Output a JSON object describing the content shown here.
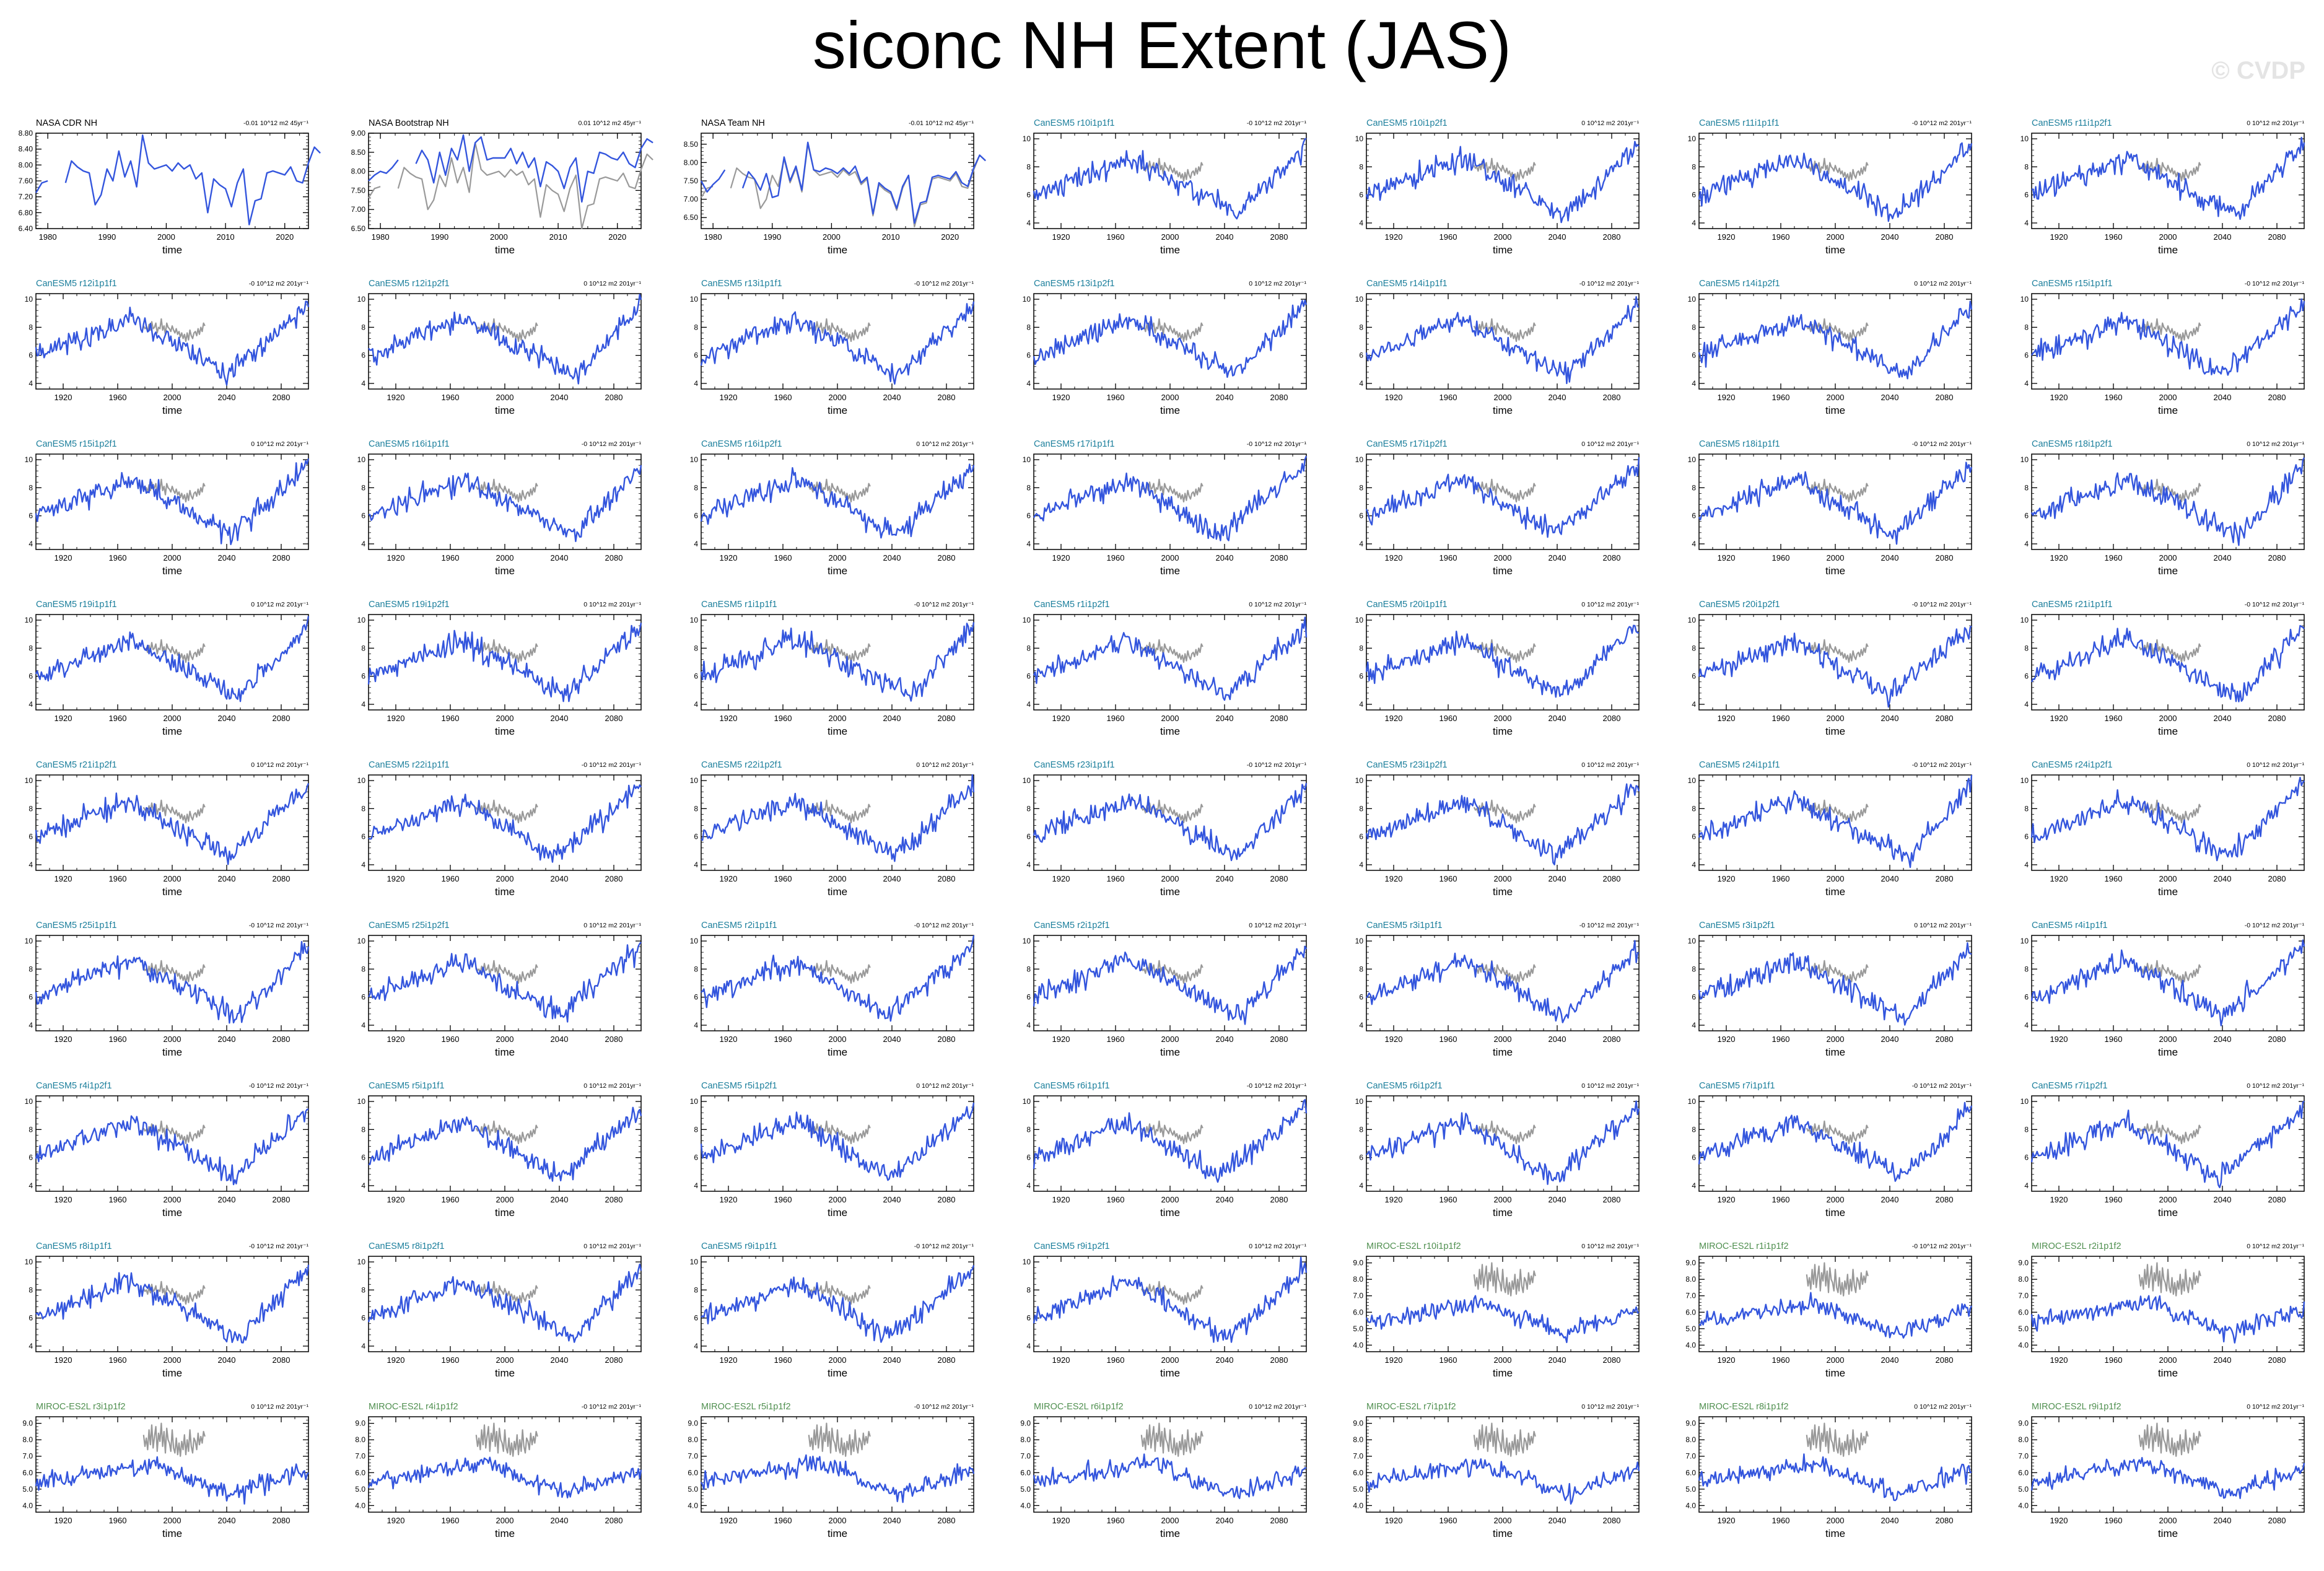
{
  "title": "siconc NH Extent (JAS)",
  "watermark": "© CVDP",
  "colors": {
    "model": "#3355dd",
    "obs": "#999999",
    "cesm_title": "#1c7f9c",
    "miroc_title": "#4f8f4f",
    "obs_title": "#000000"
  },
  "chart_data": [
    {
      "type": "line",
      "title": "NASA CDR NH",
      "trend": "-0.01 10^12 m2 45yr⁻¹",
      "xlabel": "time",
      "xlim": [
        1978,
        2024
      ],
      "xticks": [
        1980,
        1990,
        2000,
        2010,
        2020
      ],
      "ylim": [
        6.4,
        8.8
      ],
      "yticks": [
        "6.40",
        "6.80",
        "7.20",
        "7.60",
        "8.00",
        "8.40",
        "8.80"
      ],
      "obs_overlay": false,
      "series": [
        {
          "values": [
            7.3,
            7.55,
            7.6,
            null,
            null,
            7.55,
            8.1,
            7.95,
            7.85,
            7.8,
            7.0,
            7.25,
            7.9,
            7.6,
            8.35,
            7.7,
            8.1,
            7.45,
            8.75,
            8.05,
            7.9,
            7.95,
            8.0,
            7.85,
            8.05,
            7.9,
            8.0,
            7.65,
            7.8,
            6.8,
            7.65,
            7.5,
            7.4,
            6.95,
            7.55,
            7.9,
            6.5,
            7.1,
            7.15,
            7.8,
            7.85,
            7.8,
            7.75,
            7.95,
            7.6,
            7.55,
            8.05,
            8.45,
            8.3
          ]
        }
      ]
    },
    {
      "type": "line",
      "title": "NASA Bootstrap NH",
      "trend": "0.01 10^12 m2 45yr⁻¹",
      "xlabel": "time",
      "xlim": [
        1978,
        2024
      ],
      "xticks": [
        1980,
        1990,
        2000,
        2010,
        2020
      ],
      "ylim": [
        6.5,
        9.0
      ],
      "yticks": [
        "6.50",
        "7.00",
        "7.50",
        "8.00",
        "8.50",
        "9.00"
      ],
      "obs_overlay": true,
      "series": [
        {
          "values": [
            7.75,
            7.9,
            8.0,
            7.95,
            8.1,
            8.3,
            null,
            null,
            8.2,
            8.55,
            8.3,
            7.7,
            8.5,
            7.9,
            8.6,
            8.3,
            8.95,
            8.0,
            8.75,
            8.9,
            8.3,
            8.35,
            8.35,
            8.35,
            8.6,
            8.2,
            8.5,
            8.1,
            8.35,
            7.6,
            8.25,
            8.15,
            8.0,
            7.55,
            8.1,
            8.35,
            7.2,
            8.0,
            7.95,
            8.5,
            8.45,
            8.35,
            8.3,
            8.5,
            8.2,
            8.1,
            8.6,
            8.85,
            8.75
          ]
        }
      ]
    },
    {
      "type": "line",
      "title": "NASA Team NH",
      "trend": "-0.01 10^12 m2 45yr⁻¹",
      "xlabel": "time",
      "xlim": [
        1978,
        2024
      ],
      "xticks": [
        1980,
        1990,
        2000,
        2010,
        2020
      ],
      "ylim": [
        6.2,
        8.8
      ],
      "yticks": [
        "6.50",
        "7.00",
        "7.50",
        "8.00",
        "8.50"
      ],
      "obs_overlay": true,
      "series": [
        {
          "values": [
            7.5,
            7.2,
            7.4,
            7.55,
            7.8,
            null,
            null,
            7.3,
            7.75,
            7.55,
            7.25,
            7.7,
            7.05,
            7.1,
            8.15,
            7.5,
            7.9,
            7.25,
            8.55,
            7.8,
            7.75,
            7.85,
            7.8,
            7.7,
            7.85,
            7.7,
            7.9,
            7.45,
            7.6,
            6.6,
            7.45,
            7.3,
            7.2,
            6.75,
            7.35,
            7.65,
            6.35,
            6.9,
            6.95,
            7.6,
            7.65,
            7.6,
            7.55,
            7.75,
            7.45,
            7.35,
            7.85,
            8.2,
            8.05
          ]
        }
      ]
    }
  ],
  "ensemble_panels": [
    {
      "title": "CanESM5 r10i1p1f1",
      "trend": "-0 10^12 m2 201yr⁻¹",
      "family": "CanESM5"
    },
    {
      "title": "CanESM5 r10i1p2f1",
      "trend": "0 10^12 m2 201yr⁻¹",
      "family": "CanESM5"
    },
    {
      "title": "CanESM5 r11i1p1f1",
      "trend": "-0 10^12 m2 201yr⁻¹",
      "family": "CanESM5"
    },
    {
      "title": "CanESM5 r11i1p2f1",
      "trend": "0 10^12 m2 201yr⁻¹",
      "family": "CanESM5"
    },
    {
      "title": "CanESM5 r12i1p1f1",
      "trend": "-0 10^12 m2 201yr⁻¹",
      "family": "CanESM5"
    },
    {
      "title": "CanESM5 r12i1p2f1",
      "trend": "0 10^12 m2 201yr⁻¹",
      "family": "CanESM5"
    },
    {
      "title": "CanESM5 r13i1p1f1",
      "trend": "-0 10^12 m2 201yr⁻¹",
      "family": "CanESM5"
    },
    {
      "title": "CanESM5 r13i1p2f1",
      "trend": "0 10^12 m2 201yr⁻¹",
      "family": "CanESM5"
    },
    {
      "title": "CanESM5 r14i1p1f1",
      "trend": "-0 10^12 m2 201yr⁻¹",
      "family": "CanESM5"
    },
    {
      "title": "CanESM5 r14i1p2f1",
      "trend": "0 10^12 m2 201yr⁻¹",
      "family": "CanESM5"
    },
    {
      "title": "CanESM5 r15i1p1f1",
      "trend": "-0 10^12 m2 201yr⁻¹",
      "family": "CanESM5"
    },
    {
      "title": "CanESM5 r15i1p2f1",
      "trend": "0 10^12 m2 201yr⁻¹",
      "family": "CanESM5"
    },
    {
      "title": "CanESM5 r16i1p1f1",
      "trend": "-0 10^12 m2 201yr⁻¹",
      "family": "CanESM5"
    },
    {
      "title": "CanESM5 r16i1p2f1",
      "trend": "0 10^12 m2 201yr⁻¹",
      "family": "CanESM5"
    },
    {
      "title": "CanESM5 r17i1p1f1",
      "trend": "-0 10^12 m2 201yr⁻¹",
      "family": "CanESM5"
    },
    {
      "title": "CanESM5 r17i1p2f1",
      "trend": "0 10^12 m2 201yr⁻¹",
      "family": "CanESM5"
    },
    {
      "title": "CanESM5 r18i1p1f1",
      "trend": "-0 10^12 m2 201yr⁻¹",
      "family": "CanESM5"
    },
    {
      "title": "CanESM5 r18i1p2f1",
      "trend": "0 10^12 m2 201yr⁻¹",
      "family": "CanESM5"
    },
    {
      "title": "CanESM5 r19i1p1f1",
      "trend": "0 10^12 m2 201yr⁻¹",
      "family": "CanESM5"
    },
    {
      "title": "CanESM5 r19i1p2f1",
      "trend": "0 10^12 m2 201yr⁻¹",
      "family": "CanESM5"
    },
    {
      "title": "CanESM5 r1i1p1f1",
      "trend": "-0 10^12 m2 201yr⁻¹",
      "family": "CanESM5"
    },
    {
      "title": "CanESM5 r1i1p2f1",
      "trend": "0 10^12 m2 201yr⁻¹",
      "family": "CanESM5"
    },
    {
      "title": "CanESM5 r20i1p1f1",
      "trend": "0 10^12 m2 201yr⁻¹",
      "family": "CanESM5"
    },
    {
      "title": "CanESM5 r20i1p2f1",
      "trend": "-0 10^12 m2 201yr⁻¹",
      "family": "CanESM5"
    },
    {
      "title": "CanESM5 r21i1p1f1",
      "trend": "-0 10^12 m2 201yr⁻¹",
      "family": "CanESM5"
    },
    {
      "title": "CanESM5 r21i1p2f1",
      "trend": "0 10^12 m2 201yr⁻¹",
      "family": "CanESM5"
    },
    {
      "title": "CanESM5 r22i1p1f1",
      "trend": "-0 10^12 m2 201yr⁻¹",
      "family": "CanESM5"
    },
    {
      "title": "CanESM5 r22i1p2f1",
      "trend": "0 10^12 m2 201yr⁻¹",
      "family": "CanESM5"
    },
    {
      "title": "CanESM5 r23i1p1f1",
      "trend": "-0 10^12 m2 201yr⁻¹",
      "family": "CanESM5"
    },
    {
      "title": "CanESM5 r23i1p2f1",
      "trend": "0 10^12 m2 201yr⁻¹",
      "family": "CanESM5"
    },
    {
      "title": "CanESM5 r24i1p1f1",
      "trend": "-0 10^12 m2 201yr⁻¹",
      "family": "CanESM5"
    },
    {
      "title": "CanESM5 r24i1p2f1",
      "trend": "0 10^12 m2 201yr⁻¹",
      "family": "CanESM5"
    },
    {
      "title": "CanESM5 r25i1p1f1",
      "trend": "-0 10^12 m2 201yr⁻¹",
      "family": "CanESM5"
    },
    {
      "title": "CanESM5 r25i1p2f1",
      "trend": "0 10^12 m2 201yr⁻¹",
      "family": "CanESM5"
    },
    {
      "title": "CanESM5 r2i1p1f1",
      "trend": "-0 10^12 m2 201yr⁻¹",
      "family": "CanESM5"
    },
    {
      "title": "CanESM5 r2i1p2f1",
      "trend": "0 10^12 m2 201yr⁻¹",
      "family": "CanESM5"
    },
    {
      "title": "CanESM5 r3i1p1f1",
      "trend": "-0 10^12 m2 201yr⁻¹",
      "family": "CanESM5"
    },
    {
      "title": "CanESM5 r3i1p2f1",
      "trend": "0 10^12 m2 201yr⁻¹",
      "family": "CanESM5"
    },
    {
      "title": "CanESM5 r4i1p1f1",
      "trend": "-0 10^12 m2 201yr⁻¹",
      "family": "CanESM5"
    },
    {
      "title": "CanESM5 r4i1p2f1",
      "trend": "-0 10^12 m2 201yr⁻¹",
      "family": "CanESM5"
    },
    {
      "title": "CanESM5 r5i1p1f1",
      "trend": "0 10^12 m2 201yr⁻¹",
      "family": "CanESM5"
    },
    {
      "title": "CanESM5 r5i1p2f1",
      "trend": "0 10^12 m2 201yr⁻¹",
      "family": "CanESM5"
    },
    {
      "title": "CanESM5 r6i1p1f1",
      "trend": "-0 10^12 m2 201yr⁻¹",
      "family": "CanESM5"
    },
    {
      "title": "CanESM5 r6i1p2f1",
      "trend": "0 10^12 m2 201yr⁻¹",
      "family": "CanESM5"
    },
    {
      "title": "CanESM5 r7i1p1f1",
      "trend": "-0 10^12 m2 201yr⁻¹",
      "family": "CanESM5"
    },
    {
      "title": "CanESM5 r7i1p2f1",
      "trend": "0 10^12 m2 201yr⁻¹",
      "family": "CanESM5"
    },
    {
      "title": "CanESM5 r8i1p1f1",
      "trend": "-0 10^12 m2 201yr⁻¹",
      "family": "CanESM5"
    },
    {
      "title": "CanESM5 r8i1p2f1",
      "trend": "0 10^12 m2 201yr⁻¹",
      "family": "CanESM5"
    },
    {
      "title": "CanESM5 r9i1p1f1",
      "trend": "-0 10^12 m2 201yr⁻¹",
      "family": "CanESM5"
    },
    {
      "title": "CanESM5 r9i1p2f1",
      "trend": "0 10^12 m2 201yr⁻¹",
      "family": "CanESM5"
    },
    {
      "title": "MIROC-ES2L r10i1p1f2",
      "trend": "0 10^12 m2 201yr⁻¹",
      "family": "MIROC"
    },
    {
      "title": "MIROC-ES2L r1i1p1f2",
      "trend": "-0 10^12 m2 201yr⁻¹",
      "family": "MIROC"
    },
    {
      "title": "MIROC-ES2L r2i1p1f2",
      "trend": "0 10^12 m2 201yr⁻¹",
      "family": "MIROC"
    },
    {
      "title": "MIROC-ES2L r3i1p1f2",
      "trend": "0 10^12 m2 201yr⁻¹",
      "family": "MIROC"
    },
    {
      "title": "MIROC-ES2L r4i1p1f2",
      "trend": "-0 10^12 m2 201yr⁻¹",
      "family": "MIROC"
    },
    {
      "title": "MIROC-ES2L r5i1p1f2",
      "trend": "-0 10^12 m2 201yr⁻¹",
      "family": "MIROC"
    },
    {
      "title": "MIROC-ES2L r6i1p1f2",
      "trend": "0 10^12 m2 201yr⁻¹",
      "family": "MIROC"
    },
    {
      "title": "MIROC-ES2L r7i1p1f2",
      "trend": "0 10^12 m2 201yr⁻¹",
      "family": "MIROC"
    },
    {
      "title": "MIROC-ES2L r8i1p1f2",
      "trend": "0 10^12 m2 201yr⁻¹",
      "family": "MIROC"
    },
    {
      "title": "MIROC-ES2L r9i1p1f2",
      "trend": "0 10^12 m2 201yr⁻¹",
      "family": "MIROC"
    }
  ],
  "ensemble_axes": {
    "xlabel": "time",
    "xlim": [
      1900,
      2100
    ],
    "xticks": [
      1920,
      1960,
      2000,
      2040,
      2080
    ],
    "canesm_ylim": [
      3.6,
      10.4
    ],
    "canesm_yticks": [
      "4",
      "6",
      "8",
      "10"
    ],
    "miroc_ylim": [
      3.6,
      9.4
    ],
    "miroc_yticks": [
      "4.0",
      "5.0",
      "6.0",
      "7.0",
      "8.0",
      "9.0"
    ]
  }
}
